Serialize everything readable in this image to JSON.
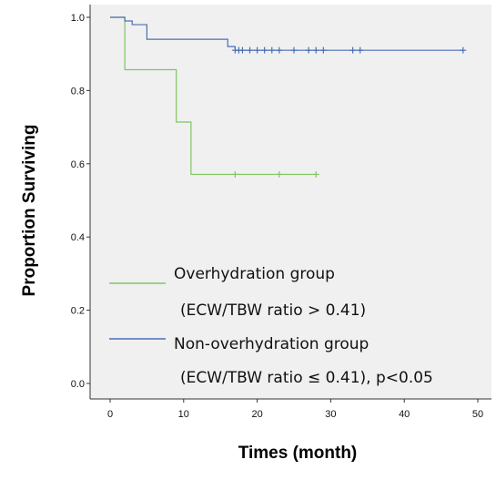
{
  "chart_data": {
    "type": "line",
    "xlabel": "Times (month)",
    "ylabel": "Proportion Surviving",
    "xlim": [
      0,
      50
    ],
    "ylim": [
      0.0,
      1.0
    ],
    "xticks": [
      "0",
      "10",
      "20",
      "30",
      "40",
      "50"
    ],
    "yticks": [
      "0.0",
      "0.2",
      "0.4",
      "0.6",
      "0.8",
      "1.0"
    ],
    "legend": {
      "entries": [
        {
          "line1": "Overhydration group",
          "line2": "(ECW/TBW ratio > 0.41)"
        },
        {
          "line1": "Non-overhydration group",
          "line2": "(ECW/TBW ratio ≤ 0.41),  p<0.05"
        }
      ]
    },
    "series": [
      {
        "color": "#7dc760",
        "steps": [
          [
            0,
            1.0
          ],
          [
            2,
            0.857
          ],
          [
            9,
            0.714
          ],
          [
            11,
            0.571
          ],
          [
            28,
            0.571
          ]
        ],
        "censored": [
          [
            17,
            0.571
          ],
          [
            23,
            0.571
          ],
          [
            28,
            0.571
          ]
        ]
      },
      {
        "color": "#4a6fb5",
        "steps": [
          [
            0,
            1.0
          ],
          [
            2,
            0.99
          ],
          [
            3,
            0.98
          ],
          [
            5,
            0.94
          ],
          [
            12,
            0.94
          ],
          [
            16,
            0.92
          ],
          [
            17,
            0.91
          ],
          [
            48,
            0.91
          ]
        ],
        "censored": [
          [
            17,
            0.91
          ],
          [
            17.5,
            0.91
          ],
          [
            18,
            0.91
          ],
          [
            19,
            0.91
          ],
          [
            20,
            0.91
          ],
          [
            21,
            0.91
          ],
          [
            22,
            0.91
          ],
          [
            23,
            0.91
          ],
          [
            25,
            0.91
          ],
          [
            27,
            0.91
          ],
          [
            28,
            0.91
          ],
          [
            29,
            0.91
          ],
          [
            33,
            0.91
          ],
          [
            34,
            0.91
          ],
          [
            48,
            0.91
          ]
        ]
      }
    ]
  }
}
